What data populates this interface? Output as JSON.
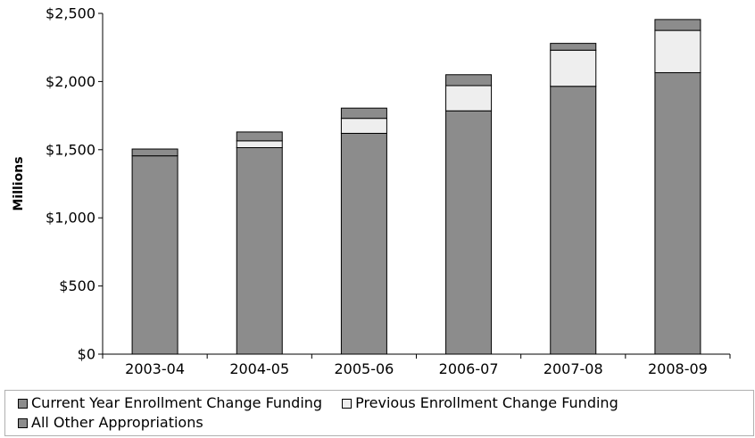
{
  "chart_data": {
    "type": "bar",
    "stacked": true,
    "categories": [
      "2003-04",
      "2004-05",
      "2005-06",
      "2006-07",
      "2007-08",
      "2008-09"
    ],
    "series": [
      {
        "name": "All Other Appropriations",
        "color": "#8c8c8c",
        "values": [
          1455,
          1515,
          1620,
          1785,
          1965,
          2065
        ]
      },
      {
        "name": "Previous Enrollment Change Funding",
        "color": "#eeeeee",
        "values": [
          0,
          50,
          110,
          185,
          265,
          310
        ]
      },
      {
        "name": "Current Year Enrollment Change Funding",
        "color": "#8c8c8c",
        "values": [
          50,
          65,
          75,
          80,
          50,
          80
        ]
      }
    ],
    "ylabel": "Millions",
    "xlabel": "",
    "ylim": [
      0,
      2500
    ],
    "yticks": [
      "$0",
      "$500",
      "$1,000",
      "$1,500",
      "$2,000",
      "$2,500"
    ],
    "ytick_values": [
      0,
      500,
      1000,
      1500,
      2000,
      2500
    ],
    "grid": false,
    "legend_position": "bottom"
  },
  "legend": {
    "row1": [
      {
        "label": "Current Year Enrollment Change Funding",
        "color": "#8c8c8c"
      },
      {
        "label": "Previous Enrollment Change Funding",
        "color": "#eeeeee"
      }
    ],
    "row2": [
      {
        "label": "All Other Appropriations",
        "color": "#8c8c8c"
      }
    ]
  }
}
